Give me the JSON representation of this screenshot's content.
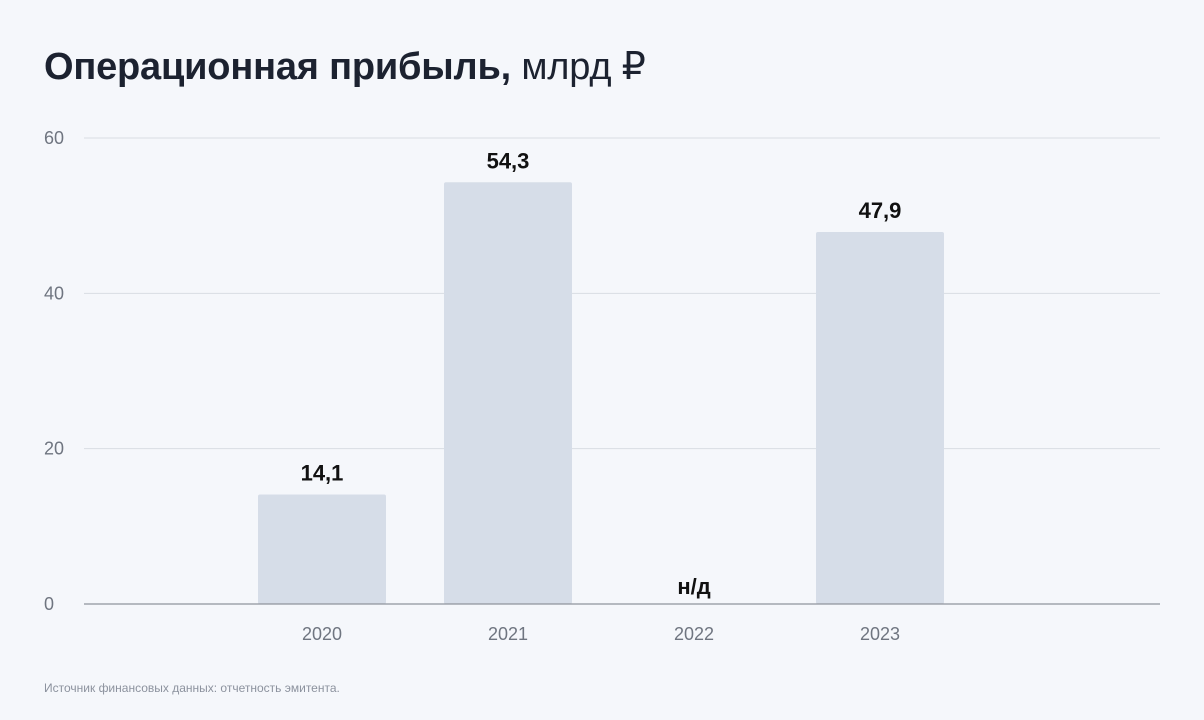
{
  "header": {
    "title_main": "Операционная прибыль,",
    "title_unit": "млрд ₽"
  },
  "footer": {
    "source": "Источник финансовых данных: отчетность эмитента."
  },
  "colors": {
    "background": "#f5f7fb",
    "bar": "#d6dde8",
    "grid": "#d9dce3",
    "axis": "#8f949c",
    "tick_text": "#6f7580",
    "value_text": "#111111"
  },
  "chart_data": {
    "type": "bar",
    "categories": [
      "2020",
      "2021",
      "2022",
      "2023"
    ],
    "values": [
      14.1,
      54.3,
      null,
      47.9
    ],
    "value_labels": [
      "14,1",
      "54,3",
      "н/д",
      "47,9"
    ],
    "title": "Операционная прибыль, млрд ₽",
    "xlabel": "",
    "ylabel": "",
    "ylim": [
      0,
      60
    ],
    "yticks": [
      0,
      20,
      40,
      60
    ],
    "grid": true,
    "legend": "none"
  }
}
